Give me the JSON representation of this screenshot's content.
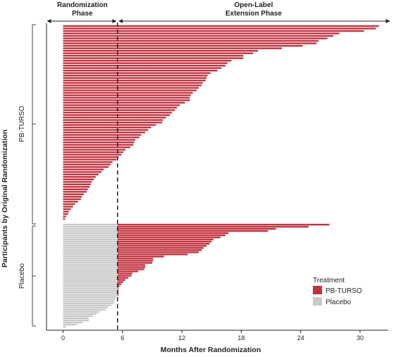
{
  "chart_data": {
    "type": "bar",
    "orientation": "horizontal",
    "xlabel": "Months After Randomization",
    "ylabel": "Participants by Original Randomization",
    "xticks": [
      0,
      6,
      12,
      18,
      24,
      30
    ],
    "xlim": [
      -1.5,
      33
    ],
    "randomization_cutoff": 5.5,
    "phases": {
      "randomization": "Randomization\nPhase",
      "extension": "Open-Label\nExtension Phase"
    },
    "groups": [
      {
        "name": "PB-TURSO",
        "label": "PB-TURSO"
      },
      {
        "name": "Placebo",
        "label": "Placebo"
      }
    ],
    "legend": {
      "title": "Treatment",
      "position": "bottom-right",
      "items": [
        {
          "label": "PB-TURSO",
          "color": "#c1323f"
        },
        {
          "label": "Placebo",
          "color": "#c9c9c9"
        }
      ]
    },
    "colors": {
      "active": "#c1323f",
      "placebo": "#c9c9c9"
    },
    "series": [
      {
        "name": "PB-TURSO",
        "description": "durations in months, one bar per participant, sorted descending",
        "values": [
          31.9,
          31.6,
          30.4,
          27.9,
          27.3,
          26.7,
          25.8,
          25.6,
          24.2,
          22.1,
          19.7,
          19.2,
          18.2,
          18.2,
          17.0,
          16.6,
          16.4,
          16.0,
          15.6,
          14.9,
          14.6,
          14.5,
          14.4,
          14.1,
          14.0,
          13.7,
          13.5,
          13.1,
          12.9,
          12.8,
          12.8,
          12.3,
          11.8,
          11.5,
          11.3,
          11.0,
          10.8,
          10.4,
          10.1,
          10.0,
          9.4,
          8.9,
          8.6,
          8.3,
          7.9,
          7.7,
          7.3,
          7.2,
          7.1,
          6.8,
          6.3,
          6.1,
          5.9,
          5.6,
          5.4,
          5.0,
          4.8,
          4.6,
          4.1,
          3.9,
          3.6,
          3.3,
          3.1,
          2.9,
          2.8,
          2.7,
          2.5,
          2.4,
          2.1,
          1.9,
          1.8,
          1.5,
          1.2,
          1.0,
          0.8,
          0.6,
          0.5,
          0.3,
          0.2
        ]
      },
      {
        "name": "Placebo",
        "description": "placebo phase duration (months) then optional open-label PB-TURSO extension end (months); 0 = no extension",
        "placebo_values": [
          5.5,
          5.5,
          5.5,
          5.5,
          5.5,
          5.5,
          5.5,
          5.5,
          5.5,
          5.5,
          5.5,
          5.5,
          5.5,
          5.5,
          5.5,
          5.5,
          5.5,
          5.5,
          5.5,
          5.5,
          5.5,
          5.5,
          5.5,
          5.5,
          5.5,
          5.5,
          5.5,
          5.5,
          5.5,
          5.5,
          5.5,
          5.5,
          5.5,
          5.5,
          5.4,
          5.3,
          5.2,
          5.1,
          4.9,
          4.5,
          4.3,
          3.7,
          3.4,
          3.0,
          2.6,
          2.6,
          2.0,
          1.4,
          0.3
        ],
        "extension_values": [
          26.9,
          24.8,
          21.5,
          20.7,
          16.7,
          16.4,
          15.9,
          15.2,
          15.0,
          14.8,
          14.5,
          14.2,
          14.0,
          13.7,
          12.6,
          10.2,
          9.1,
          9.1,
          9.0,
          8.3,
          8.3,
          8.2,
          7.6,
          7.0,
          6.9,
          6.6,
          6.3,
          6.1,
          5.9,
          5.7,
          5.6,
          5.6,
          5.6,
          5.6,
          0,
          0,
          0,
          0,
          0,
          0,
          0,
          0,
          0,
          0,
          0,
          0,
          0,
          0,
          0
        ]
      }
    ]
  }
}
